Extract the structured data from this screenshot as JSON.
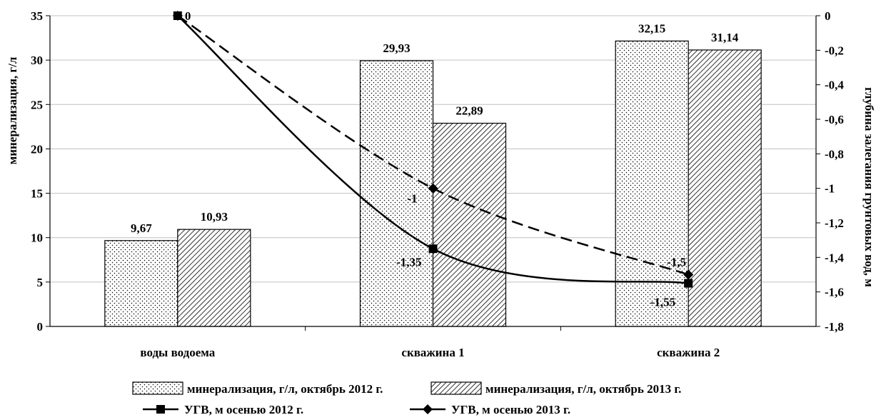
{
  "chart_data": {
    "type": "bar",
    "categories": [
      "воды водоема",
      "скважина 1",
      "скважина 2"
    ],
    "series": [
      {
        "name": "минерализация, г/л, октябрь 2012 г.",
        "values": [
          9.67,
          29.93,
          32.15
        ],
        "labels": [
          "9,67",
          "29,93",
          "32,15"
        ],
        "axis": "left",
        "render": "bar",
        "pattern": "dots"
      },
      {
        "name": "минерализация, г/л, октябрь 2013 г.",
        "values": [
          10.93,
          22.89,
          31.14
        ],
        "labels": [
          "10,93",
          "22,89",
          "31,14"
        ],
        "axis": "left",
        "render": "bar",
        "pattern": "hatch"
      },
      {
        "name": "УГВ, м осенью 2012 г.",
        "values": [
          0,
          -1.35,
          -1.55
        ],
        "labels": [
          "0",
          "-1,35",
          "-1,55"
        ],
        "axis": "right",
        "render": "line",
        "line_style": "solid",
        "marker": "square"
      },
      {
        "name": "УГВ, м осенью 2013 г.",
        "values": [
          0,
          -1,
          -1.5
        ],
        "labels": [
          "0",
          "-1",
          "-1,5"
        ],
        "axis": "right",
        "render": "line",
        "line_style": "dashed",
        "marker": "diamond"
      }
    ],
    "ylabel": "минерализация, г/л",
    "y2label": "глубина залегания грунтовых вод, м",
    "xlabel": "",
    "ylim": [
      0,
      35
    ],
    "y2lim": [
      -1.8,
      0
    ],
    "yticks": [
      "0",
      "5",
      "10",
      "15",
      "20",
      "25",
      "30",
      "35"
    ],
    "y2ticks": [
      "0",
      "-0,2",
      "-0,4",
      "-0,6",
      "-0,8",
      "-1",
      "-1,2",
      "-1,4",
      "-1,6",
      "-1,8"
    ],
    "grid": true,
    "legend_position": "bottom",
    "colors": {
      "line": "#000000",
      "bar_fill": "#ffffff",
      "grid": "#c0c0c0"
    }
  }
}
